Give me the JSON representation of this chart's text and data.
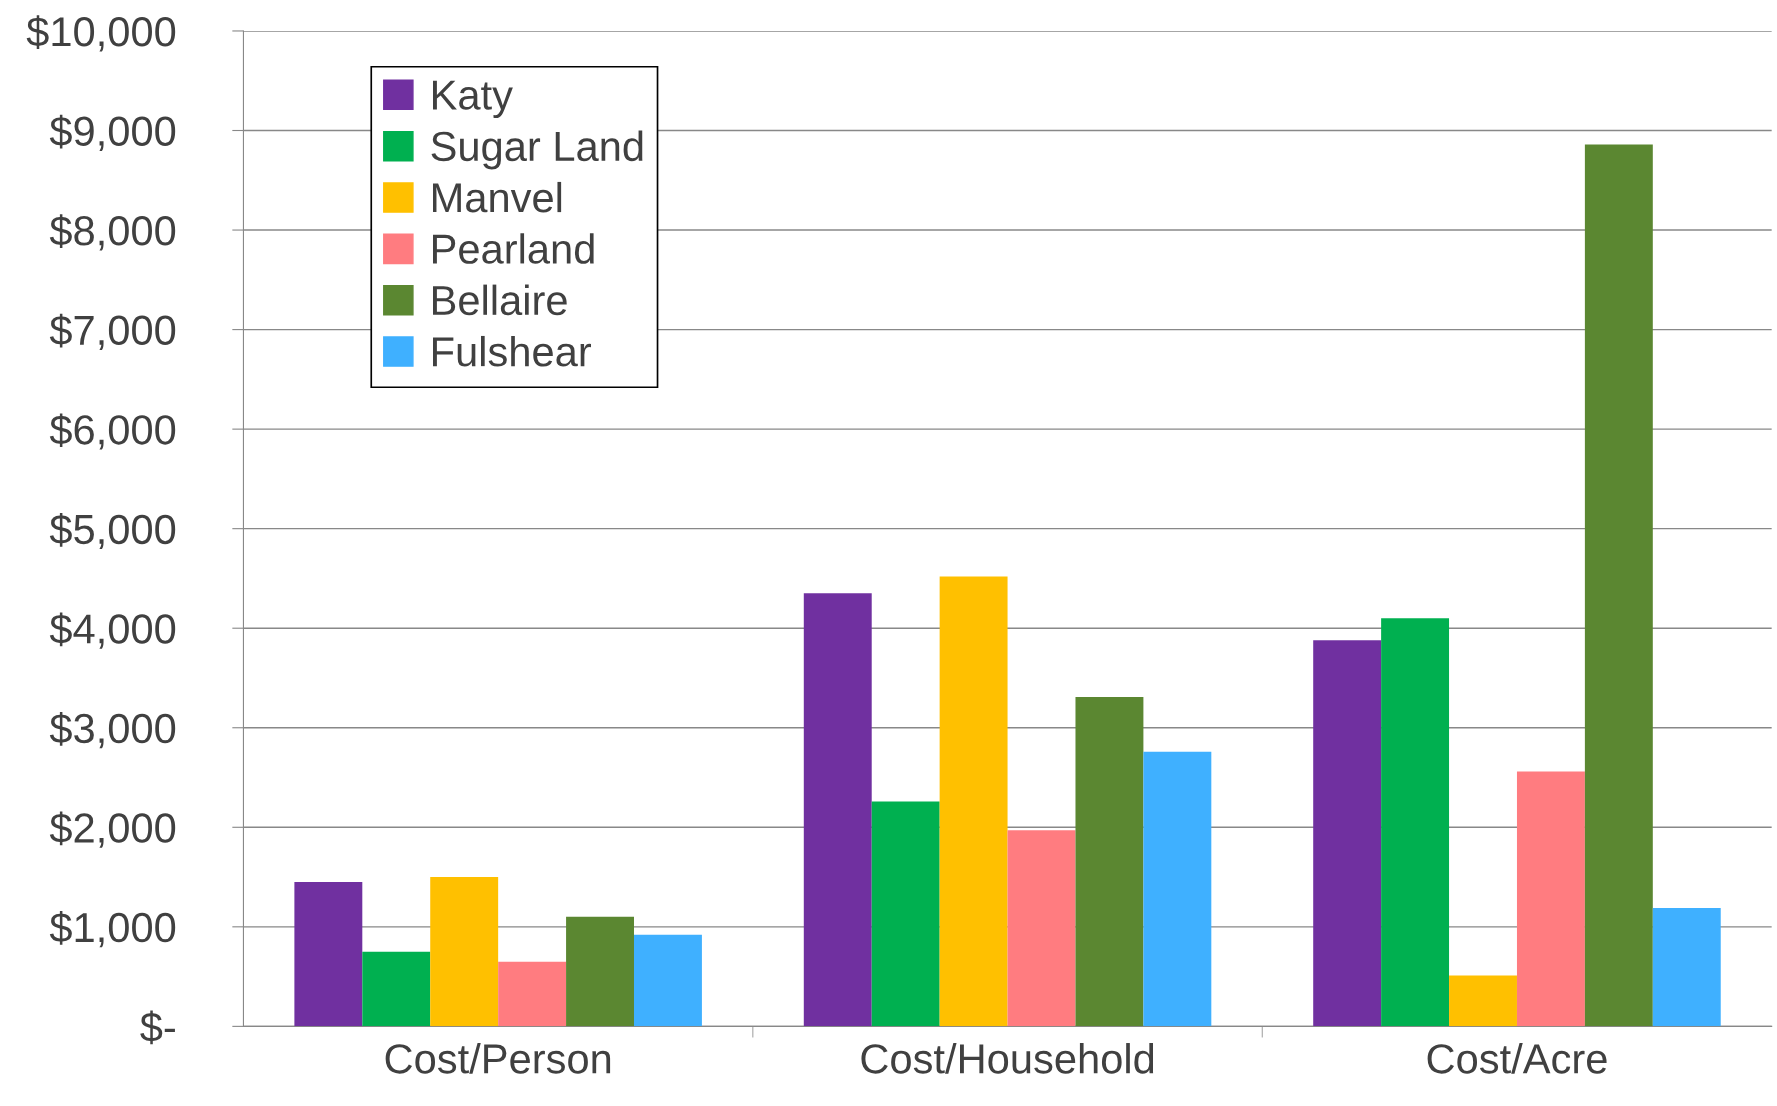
{
  "chart_data": {
    "type": "bar",
    "categories": [
      "Cost/Person",
      "Cost/Household",
      "Cost/Acre"
    ],
    "series": [
      {
        "name": "Katy",
        "color": "#7030a0",
        "values": [
          1450,
          4350,
          3880
        ]
      },
      {
        "name": "Sugar Land",
        "color": "#00b050",
        "values": [
          750,
          2260,
          4100
        ]
      },
      {
        "name": "Manvel",
        "color": "#ffc000",
        "values": [
          1500,
          4520,
          510
        ]
      },
      {
        "name": "Pearland",
        "color": "#ff7c80",
        "values": [
          650,
          1970,
          2560
        ]
      },
      {
        "name": "Bellaire",
        "color": "#5b8731",
        "values": [
          1100,
          3310,
          8860
        ]
      },
      {
        "name": "Fulshear",
        "color": "#3fb0ff",
        "values": [
          920,
          2760,
          1190
        ]
      }
    ],
    "ylim": [
      0,
      10000
    ],
    "yticks": [
      {
        "value": 0,
        "label": "$-"
      },
      {
        "value": 1000,
        "label": "$1,000"
      },
      {
        "value": 2000,
        "label": "$2,000"
      },
      {
        "value": 3000,
        "label": "$3,000"
      },
      {
        "value": 4000,
        "label": "$4,000"
      },
      {
        "value": 5000,
        "label": "$5,000"
      },
      {
        "value": 6000,
        "label": "$6,000"
      },
      {
        "value": 7000,
        "label": "$7,000"
      },
      {
        "value": 8000,
        "label": "$8,000"
      },
      {
        "value": 9000,
        "label": "$9,000"
      },
      {
        "value": 10000,
        "label": "$10,000"
      }
    ],
    "grid": "y",
    "legend": "top left"
  }
}
